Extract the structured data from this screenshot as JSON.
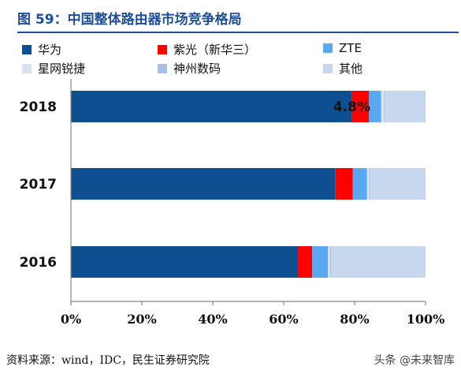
{
  "title": "图 59：中国整体路由器市场竞争格局",
  "source": "资料来源：wind，IDC，民生证券研究院",
  "watermark": "头条 @未来智库",
  "chart_data": {
    "type": "bar",
    "orientation": "horizontal",
    "stacked": true,
    "categories": [
      "2018",
      "2017",
      "2016"
    ],
    "series": [
      {
        "name": "华为",
        "color": "#0d4f91",
        "values": [
          79.2,
          74.5,
          64.0
        ]
      },
      {
        "name": "紫光（新华三）",
        "color": "#ff0000",
        "values": [
          4.8,
          5.0,
          4.0
        ]
      },
      {
        "name": "ZTE",
        "color": "#5aa8f0",
        "values": [
          3.5,
          4.0,
          4.5
        ]
      },
      {
        "name": "星网锐捷",
        "color": "#d8e3f2",
        "values": [
          0.8,
          0.6,
          0.6
        ]
      },
      {
        "name": "神州数码",
        "color": "#a9c0e2",
        "values": [
          0.3,
          0.3,
          0.3
        ]
      },
      {
        "name": "其他",
        "color": "#c7d7ee",
        "values": [
          11.4,
          15.6,
          26.6
        ]
      }
    ],
    "annotations": [
      {
        "category": "2018",
        "series": "紫光（新华三）",
        "text": "4.8%"
      }
    ],
    "xlim": [
      0,
      100
    ],
    "x_ticks": [
      "0%",
      "20%",
      "40%",
      "60%",
      "80%",
      "100%"
    ],
    "legend_position": "top"
  }
}
